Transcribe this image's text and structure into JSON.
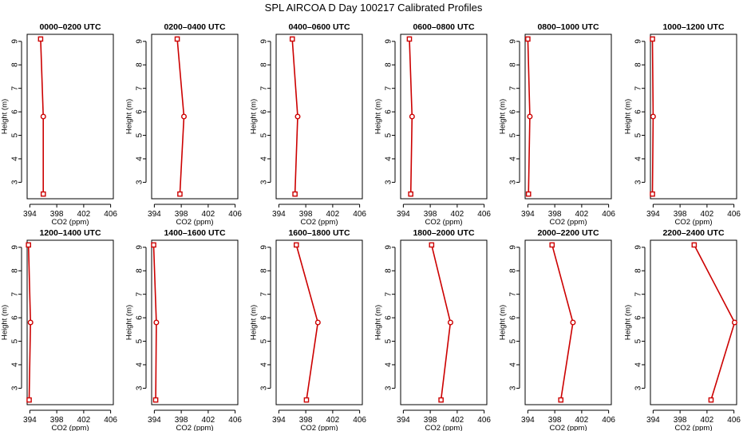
{
  "title": "SPL AIRCOA D  Day 100217  Calibrated Profiles",
  "style": {
    "line_color": "#cc0000",
    "marker_color": "#cc0000"
  },
  "chart_data": [
    {
      "type": "line",
      "title": "0000–0200 UTC",
      "xlabel": "CO2 (ppm)",
      "ylabel": "Height (m)",
      "xlim": [
        393.6,
        406.4
      ],
      "ylim": [
        2.3,
        9.3
      ],
      "xticks": [
        394,
        398,
        402,
        406
      ],
      "yticks": [
        3,
        4,
        5,
        6,
        7,
        8,
        9
      ],
      "points": [
        {
          "x": 395.6,
          "y": 9.1
        },
        {
          "x": 396.0,
          "y": 5.8
        },
        {
          "x": 396.0,
          "y": 2.5
        }
      ]
    },
    {
      "type": "line",
      "title": "0200–0400 UTC",
      "xlabel": "CO2 (ppm)",
      "ylabel": "Height (m)",
      "xlim": [
        393.6,
        406.4
      ],
      "ylim": [
        2.3,
        9.3
      ],
      "xticks": [
        394,
        398,
        402,
        406
      ],
      "yticks": [
        3,
        4,
        5,
        6,
        7,
        8,
        9
      ],
      "points": [
        {
          "x": 397.4,
          "y": 9.1
        },
        {
          "x": 398.4,
          "y": 5.8
        },
        {
          "x": 397.8,
          "y": 2.5
        }
      ]
    },
    {
      "type": "line",
      "title": "0400–0600 UTC",
      "xlabel": "CO2 (ppm)",
      "ylabel": "Height (m)",
      "xlim": [
        393.6,
        406.4
      ],
      "ylim": [
        2.3,
        9.3
      ],
      "xticks": [
        394,
        398,
        402,
        406
      ],
      "yticks": [
        3,
        4,
        5,
        6,
        7,
        8,
        9
      ],
      "points": [
        {
          "x": 396.0,
          "y": 9.1
        },
        {
          "x": 396.8,
          "y": 5.8
        },
        {
          "x": 396.4,
          "y": 2.5
        }
      ]
    },
    {
      "type": "line",
      "title": "0600–0800 UTC",
      "xlabel": "CO2 (ppm)",
      "ylabel": "Height (m)",
      "xlim": [
        393.6,
        406.4
      ],
      "ylim": [
        2.3,
        9.3
      ],
      "xticks": [
        394,
        398,
        402,
        406
      ],
      "yticks": [
        3,
        4,
        5,
        6,
        7,
        8,
        9
      ],
      "points": [
        {
          "x": 394.9,
          "y": 9.1
        },
        {
          "x": 395.3,
          "y": 5.8
        },
        {
          "x": 395.1,
          "y": 2.5
        }
      ]
    },
    {
      "type": "line",
      "title": "0800–1000 UTC",
      "xlabel": "CO2 (ppm)",
      "ylabel": "Height (m)",
      "xlim": [
        393.6,
        406.4
      ],
      "ylim": [
        2.3,
        9.3
      ],
      "xticks": [
        394,
        398,
        402,
        406
      ],
      "yticks": [
        3,
        4,
        5,
        6,
        7,
        8,
        9
      ],
      "points": [
        {
          "x": 394.0,
          "y": 9.1
        },
        {
          "x": 394.3,
          "y": 5.8
        },
        {
          "x": 394.1,
          "y": 2.5
        }
      ]
    },
    {
      "type": "line",
      "title": "1000–1200 UTC",
      "xlabel": "CO2 (ppm)",
      "ylabel": "Height (m)",
      "xlim": [
        393.6,
        406.4
      ],
      "ylim": [
        2.3,
        9.3
      ],
      "xticks": [
        394,
        398,
        402,
        406
      ],
      "yticks": [
        3,
        4,
        5,
        6,
        7,
        8,
        9
      ],
      "points": [
        {
          "x": 393.9,
          "y": 9.1
        },
        {
          "x": 394.0,
          "y": 5.8
        },
        {
          "x": 393.9,
          "y": 2.5
        }
      ]
    },
    {
      "type": "line",
      "title": "1200–1400 UTC",
      "xlabel": "CO2 (ppm)",
      "ylabel": "Height (m)",
      "xlim": [
        393.6,
        406.4
      ],
      "ylim": [
        2.3,
        9.3
      ],
      "xticks": [
        394,
        398,
        402,
        406
      ],
      "yticks": [
        3,
        4,
        5,
        6,
        7,
        8,
        9
      ],
      "points": [
        {
          "x": 393.8,
          "y": 9.1
        },
        {
          "x": 394.1,
          "y": 5.8
        },
        {
          "x": 393.9,
          "y": 2.5
        }
      ]
    },
    {
      "type": "line",
      "title": "1400–1600 UTC",
      "xlabel": "CO2 (ppm)",
      "ylabel": "Height (m)",
      "xlim": [
        393.6,
        406.4
      ],
      "ylim": [
        2.3,
        9.3
      ],
      "xticks": [
        394,
        398,
        402,
        406
      ],
      "yticks": [
        3,
        4,
        5,
        6,
        7,
        8,
        9
      ],
      "points": [
        {
          "x": 393.9,
          "y": 9.1
        },
        {
          "x": 394.3,
          "y": 5.8
        },
        {
          "x": 394.2,
          "y": 2.5
        }
      ]
    },
    {
      "type": "line",
      "title": "1600–1800 UTC",
      "xlabel": "CO2 (ppm)",
      "ylabel": "Height (m)",
      "xlim": [
        393.6,
        406.4
      ],
      "ylim": [
        2.3,
        9.3
      ],
      "xticks": [
        394,
        398,
        402,
        406
      ],
      "yticks": [
        3,
        4,
        5,
        6,
        7,
        8,
        9
      ],
      "points": [
        {
          "x": 396.6,
          "y": 9.1
        },
        {
          "x": 399.8,
          "y": 5.8
        },
        {
          "x": 398.1,
          "y": 2.5
        }
      ]
    },
    {
      "type": "line",
      "title": "1800–2000 UTC",
      "xlabel": "CO2 (ppm)",
      "ylabel": "Height (m)",
      "xlim": [
        393.6,
        406.4
      ],
      "ylim": [
        2.3,
        9.3
      ],
      "xticks": [
        394,
        398,
        402,
        406
      ],
      "yticks": [
        3,
        4,
        5,
        6,
        7,
        8,
        9
      ],
      "points": [
        {
          "x": 398.2,
          "y": 9.1
        },
        {
          "x": 401.0,
          "y": 5.8
        },
        {
          "x": 399.6,
          "y": 2.5
        }
      ]
    },
    {
      "type": "line",
      "title": "2000–2200 UTC",
      "xlabel": "CO2 (ppm)",
      "ylabel": "Height (m)",
      "xlim": [
        393.6,
        406.4
      ],
      "ylim": [
        2.3,
        9.3
      ],
      "xticks": [
        394,
        398,
        402,
        406
      ],
      "yticks": [
        3,
        4,
        5,
        6,
        7,
        8,
        9
      ],
      "points": [
        {
          "x": 397.6,
          "y": 9.1
        },
        {
          "x": 400.7,
          "y": 5.8
        },
        {
          "x": 398.9,
          "y": 2.5
        }
      ]
    },
    {
      "type": "line",
      "title": "2200–2400 UTC",
      "xlabel": "CO2 (ppm)",
      "ylabel": "Height (m)",
      "xlim": [
        393.6,
        406.4
      ],
      "ylim": [
        2.3,
        9.3
      ],
      "xticks": [
        394,
        398,
        402,
        406
      ],
      "yticks": [
        3,
        4,
        5,
        6,
        7,
        8,
        9
      ],
      "points": [
        {
          "x": 400.1,
          "y": 9.1
        },
        {
          "x": 406.1,
          "y": 5.8
        },
        {
          "x": 402.6,
          "y": 2.5
        }
      ]
    }
  ]
}
